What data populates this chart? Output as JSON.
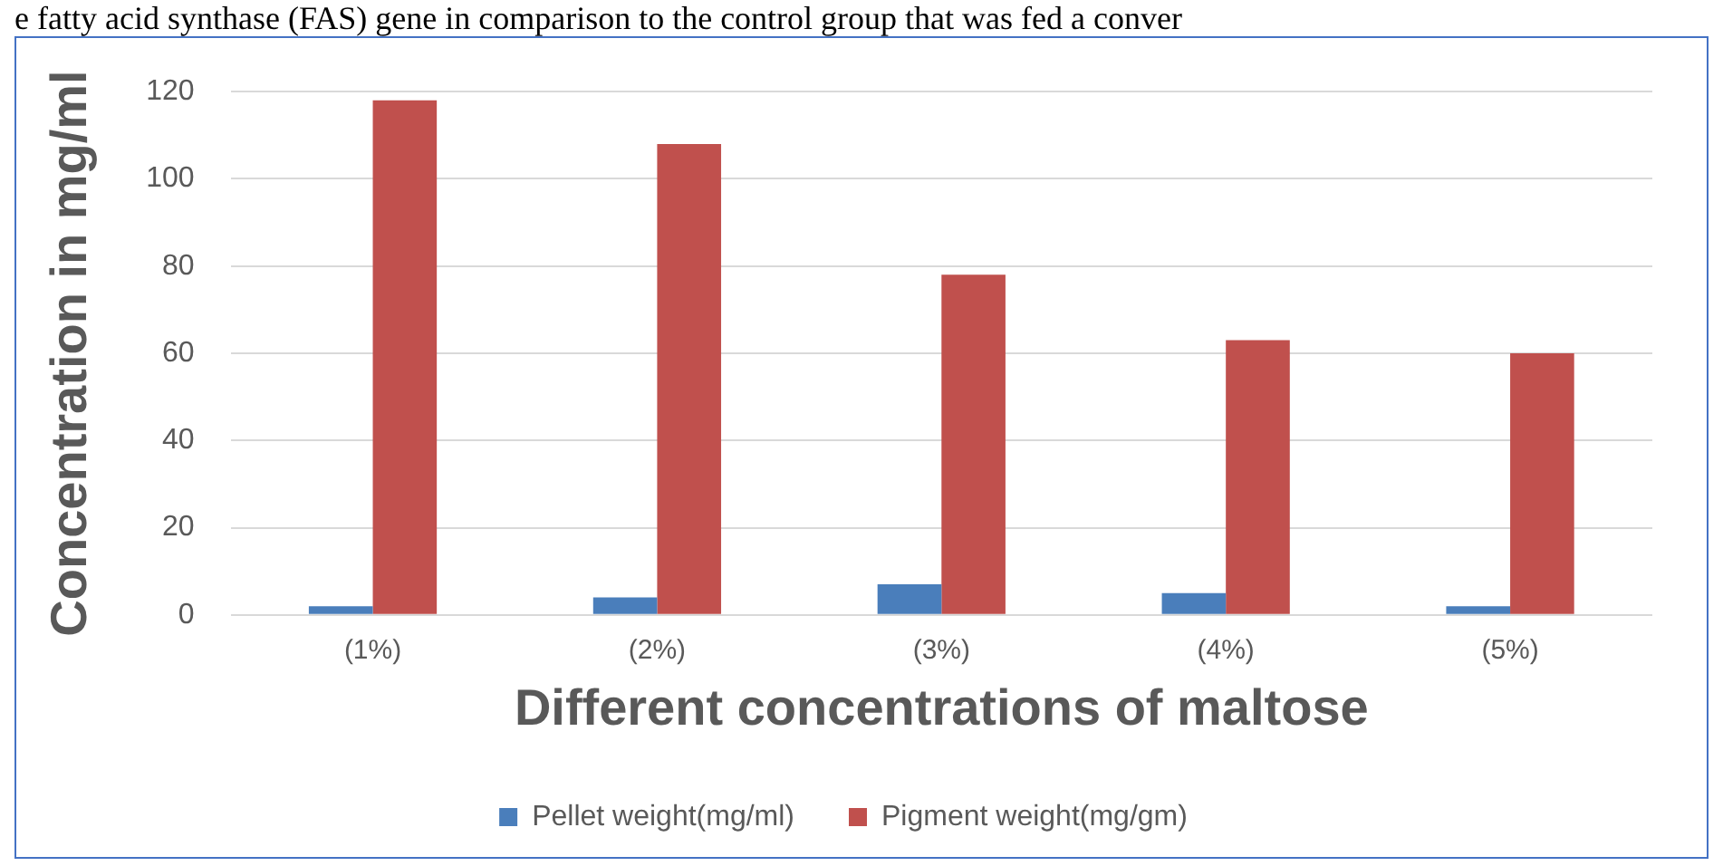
{
  "chart_data": {
    "type": "bar",
    "xlabel": "Different concentrations of maltose",
    "ylabel": "Concentration in mg/ml",
    "annotations": [
      "e fatty acid synthase (FAS) gene in comparison to the control group that was fed a conver"
    ],
    "categories": [
      "(1%)",
      "(2%)",
      "(3%)",
      "(4%)",
      "(5%)"
    ],
    "series": [
      {
        "name": "Pellet weight(mg/ml)",
        "color": "#4a7ebb",
        "values": [
          2,
          4,
          7,
          5,
          2
        ]
      },
      {
        "name": "Pigment weight(mg/gm)",
        "color": "#c0504d",
        "values": [
          118,
          108,
          78,
          63,
          60
        ]
      }
    ],
    "ylim": [
      0,
      120
    ],
    "yticks": [
      0,
      20,
      40,
      60,
      80,
      100,
      120
    ],
    "grid": "y",
    "legend": "bottom"
  }
}
